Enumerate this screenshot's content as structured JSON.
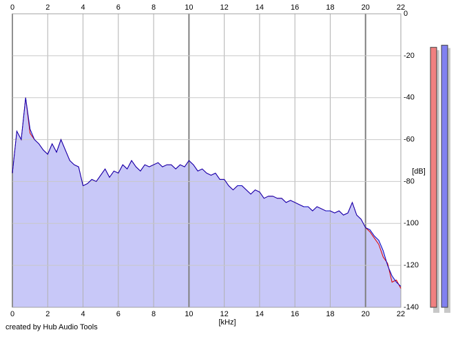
{
  "chart_data": {
    "type": "spectrum",
    "x_label": "[kHz]",
    "y_label": "[dB]",
    "credit": "created by Hub Audio Tools",
    "xlim": [
      0,
      22
    ],
    "ylim": [
      -140,
      0
    ],
    "xticks": [
      0,
      2,
      4,
      6,
      8,
      10,
      12,
      14,
      16,
      18,
      20,
      22
    ],
    "yticks": [
      0,
      -20,
      -40,
      -60,
      -80,
      -100,
      -120,
      -140
    ],
    "grid": true,
    "fill_color": "#c8c8f8",
    "x": [
      0,
      0.25,
      0.5,
      0.75,
      1,
      1.25,
      1.5,
      1.75,
      2,
      2.25,
      2.5,
      2.75,
      3,
      3.25,
      3.5,
      3.75,
      4,
      4.25,
      4.5,
      4.75,
      5,
      5.25,
      5.5,
      5.75,
      6,
      6.25,
      6.5,
      6.75,
      7,
      7.25,
      7.5,
      7.75,
      8,
      8.25,
      8.5,
      8.75,
      9,
      9.25,
      9.5,
      9.75,
      10,
      10.25,
      10.5,
      10.75,
      11,
      11.25,
      11.5,
      11.75,
      12,
      12.25,
      12.5,
      12.75,
      13,
      13.25,
      13.5,
      13.75,
      14,
      14.25,
      14.5,
      14.75,
      15,
      15.25,
      15.5,
      15.75,
      16,
      16.25,
      16.5,
      16.75,
      17,
      17.25,
      17.5,
      17.75,
      18,
      18.25,
      18.5,
      18.75,
      19,
      19.25,
      19.5,
      19.75,
      20,
      20.25,
      20.5,
      20.75,
      21,
      21.25,
      21.5,
      21.75,
      22
    ],
    "series": [
      {
        "color": "#e00000",
        "values": [
          -76,
          -56,
          -60,
          -40,
          -57,
          -60,
          -62,
          -65,
          -67,
          -62,
          -66,
          -60,
          -65,
          -70,
          -72,
          -73,
          -82,
          -81,
          -79,
          -80,
          -77,
          -74,
          -78,
          -75,
          -76,
          -72,
          -74,
          -70,
          -73,
          -75,
          -72,
          -73,
          -72,
          -71,
          -73,
          -72,
          -72,
          -74,
          -72,
          -73,
          -70,
          -72,
          -75,
          -74,
          -76,
          -77,
          -76,
          -79,
          -79,
          -82,
          -84,
          -82,
          -82,
          -84,
          -86,
          -84,
          -85,
          -88,
          -87,
          -87,
          -88,
          -88,
          -90,
          -89,
          -90,
          -91,
          -92,
          -92,
          -94,
          -92,
          -93,
          -94,
          -94,
          -95,
          -94,
          -96,
          -95,
          -90,
          -96,
          -98,
          -102,
          -104,
          -107,
          -110,
          -116,
          -119,
          -128,
          -127,
          -131
        ]
      },
      {
        "color": "#0000c0",
        "values": [
          -76,
          -56,
          -60,
          -40,
          -55,
          -60,
          -62,
          -65,
          -67,
          -62,
          -66,
          -60,
          -65,
          -70,
          -72,
          -73,
          -82,
          -81,
          -79,
          -80,
          -77,
          -74,
          -78,
          -75,
          -76,
          -72,
          -74,
          -70,
          -73,
          -75,
          -72,
          -73,
          -72,
          -71,
          -73,
          -72,
          -72,
          -74,
          -72,
          -73,
          -70,
          -72,
          -75,
          -74,
          -76,
          -77,
          -76,
          -79,
          -79,
          -82,
          -84,
          -82,
          -82,
          -84,
          -86,
          -84,
          -85,
          -88,
          -87,
          -87,
          -88,
          -88,
          -90,
          -89,
          -90,
          -91,
          -92,
          -92,
          -94,
          -92,
          -93,
          -94,
          -94,
          -95,
          -94,
          -96,
          -95,
          -90,
          -96,
          -98,
          -102,
          -103,
          -106,
          -108,
          -113,
          -120,
          -125,
          -128,
          -130
        ]
      }
    ],
    "meters": {
      "colors": [
        "#f08080",
        "#8080f0"
      ],
      "values": [
        -16,
        -15
      ]
    }
  }
}
